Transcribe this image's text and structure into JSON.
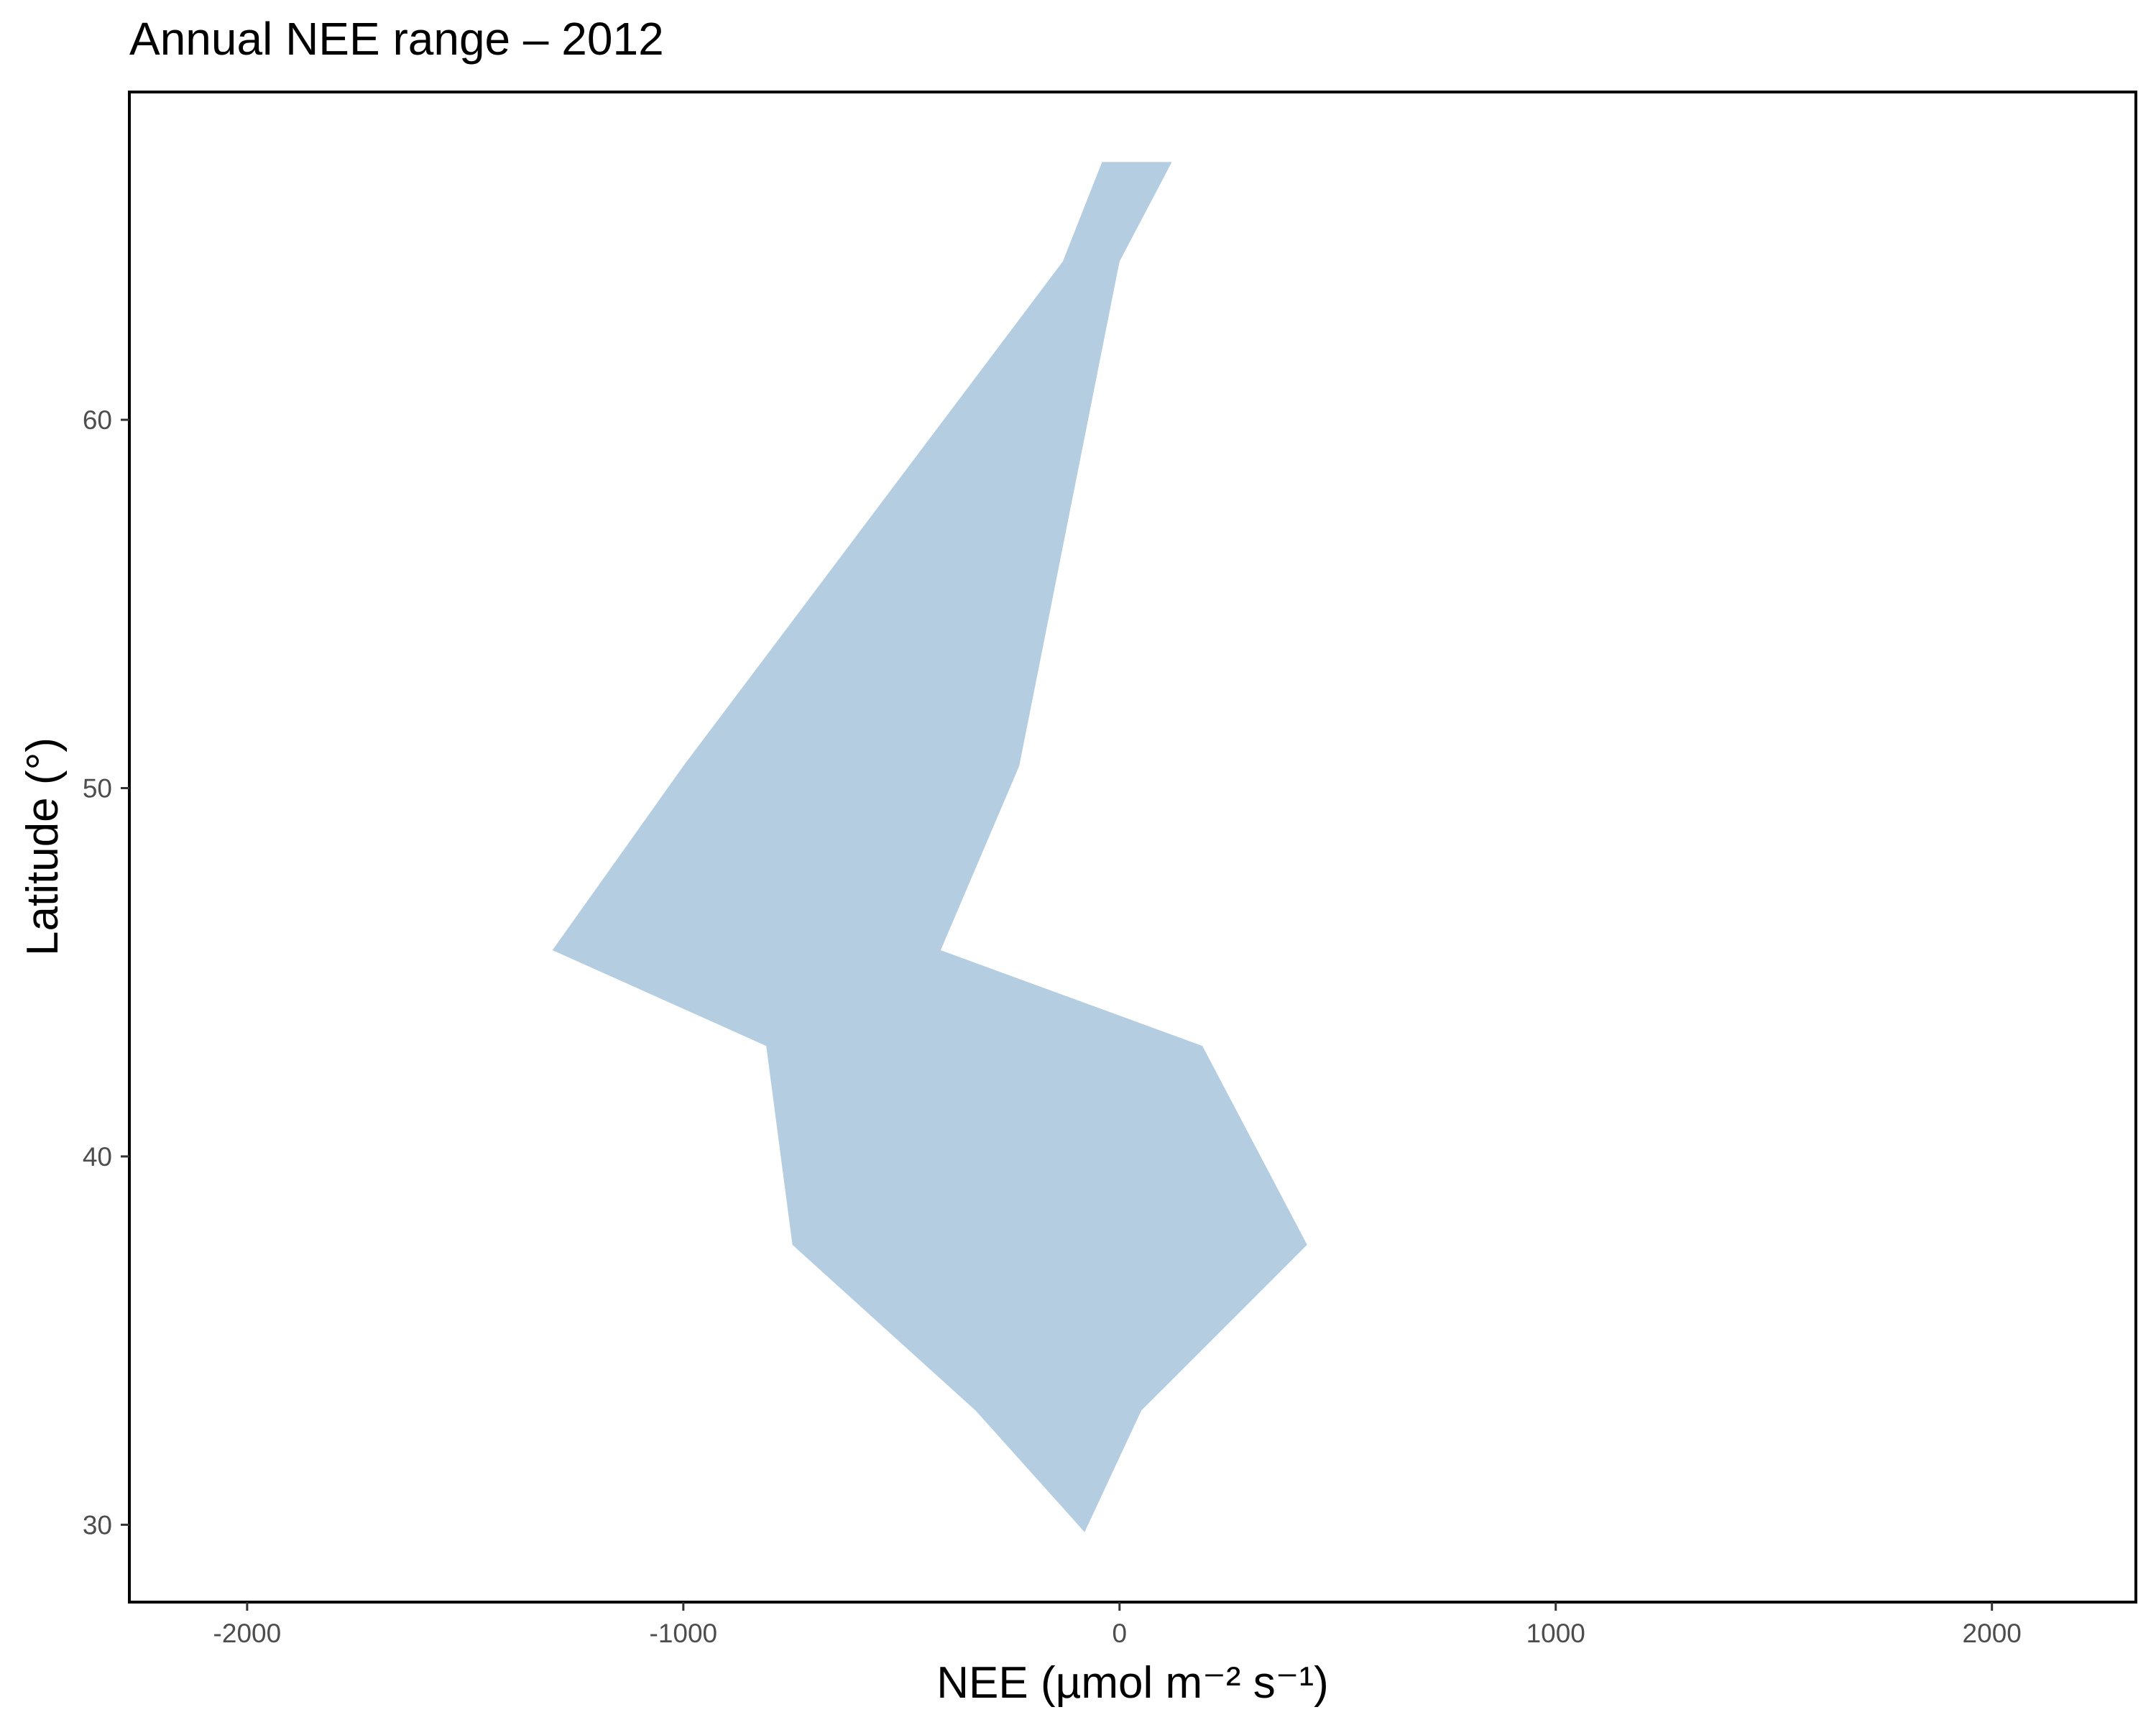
{
  "chart_data": {
    "type": "area",
    "title": "Annual NEE range – 2012",
    "xlabel": "NEE (µmol m⁻² s⁻¹)",
    "ylabel": "Latitude (°)",
    "xlim": [
      -2270,
      2330
    ],
    "ylim": [
      27.9,
      68.9
    ],
    "x_ticks": [
      -2000,
      -1000,
      0,
      1000,
      2000
    ],
    "x_tick_labels": [
      "-2000",
      "-1000",
      "0",
      "1000",
      "2000"
    ],
    "y_ticks": [
      30,
      40,
      50,
      60
    ],
    "y_tick_labels": [
      "30",
      "40",
      "50",
      "60"
    ],
    "grid": false,
    "orientation": "horizontal-ribbon",
    "series": [
      {
        "fill_color": "#b4cde1",
        "latitude": [
          29.8,
          33.1,
          37.6,
          43.0,
          45.6,
          50.6,
          64.3,
          67.0
        ],
        "xmin": [
          -80,
          -330,
          -750,
          -810,
          -1300,
          -1000,
          -130,
          -40
        ],
        "xmax": [
          -80,
          50,
          430,
          190,
          -410,
          -230,
          0,
          120
        ]
      }
    ],
    "colors": {
      "fill": "#b4cde1",
      "axis": "#000000",
      "tick_text": "#4d4d4d",
      "background": "#ffffff"
    }
  }
}
